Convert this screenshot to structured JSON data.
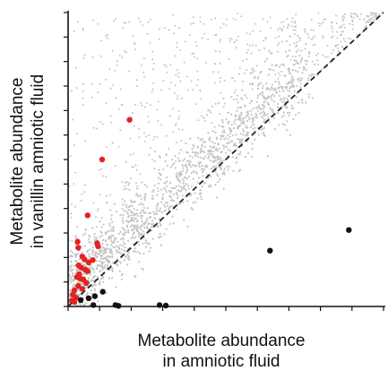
{
  "chart_data": {
    "type": "scatter",
    "xlabel": [
      "Metabolite abundance",
      "in amniotic fluid"
    ],
    "ylabel": [
      "Metabolite abundance",
      "in vanillin amniotic fluid"
    ],
    "xlim": [
      0,
      10
    ],
    "ylim": [
      0,
      10
    ],
    "grid": false,
    "reference_line": {
      "style": "dashed",
      "from": [
        0,
        0
      ],
      "to": [
        10,
        10
      ]
    },
    "colors": {
      "background_points": "#c4c4c4",
      "increased": "#e32222",
      "decreased": "#111111",
      "axis": "#111111",
      "reference_line": "#222222"
    },
    "x_ticks": 11,
    "y_ticks": 13,
    "series": [
      {
        "color": "#e32222",
        "points": [
          [
            1.95,
            6.35
          ],
          [
            1.08,
            5.0
          ],
          [
            0.62,
            3.1
          ],
          [
            0.92,
            2.15
          ],
          [
            0.95,
            2.05
          ],
          [
            0.3,
            2.2
          ],
          [
            0.32,
            2.0
          ],
          [
            0.45,
            1.7
          ],
          [
            0.52,
            1.6
          ],
          [
            0.78,
            1.58
          ],
          [
            0.65,
            1.5
          ],
          [
            0.33,
            1.4
          ],
          [
            0.42,
            1.32
          ],
          [
            0.55,
            1.25
          ],
          [
            0.62,
            1.2
          ],
          [
            0.35,
            1.1
          ],
          [
            0.28,
            1.0
          ],
          [
            0.48,
            0.92
          ],
          [
            0.58,
            0.8
          ],
          [
            0.32,
            0.7
          ],
          [
            0.45,
            0.6
          ],
          [
            0.2,
            0.55
          ],
          [
            0.15,
            0.4
          ],
          [
            0.25,
            0.3
          ],
          [
            0.12,
            0.2
          ],
          [
            0.2,
            0.15
          ],
          [
            0.38,
            0.95
          ]
        ]
      },
      {
        "color": "#111111",
        "points": [
          [
            8.9,
            2.6
          ],
          [
            6.4,
            1.9
          ],
          [
            1.1,
            0.5
          ],
          [
            0.85,
            0.35
          ],
          [
            0.65,
            0.28
          ],
          [
            0.4,
            0.22
          ],
          [
            0.8,
            0.05
          ],
          [
            1.5,
            0.05
          ],
          [
            1.6,
            0.02
          ],
          [
            2.9,
            0.05
          ],
          [
            3.1,
            0.03
          ]
        ]
      }
    ]
  }
}
